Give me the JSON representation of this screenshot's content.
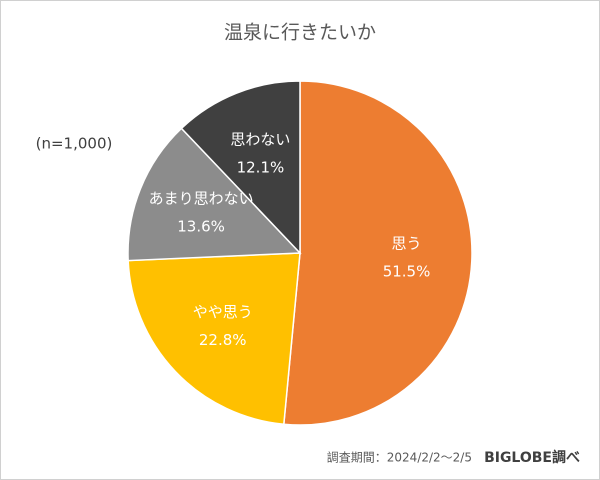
{
  "chart_data": {
    "type": "pie",
    "title": "温泉に行きたいか",
    "note": "(n=1,000)",
    "categories": [
      "思う",
      "やや思う",
      "あまり思わない",
      "思わない"
    ],
    "values": [
      51.5,
      22.8,
      13.6,
      12.1
    ],
    "value_labels": [
      "51.5%",
      "22.8%",
      "13.6%",
      "12.1%"
    ],
    "colors": [
      "#ED7D31",
      "#FFC000",
      "#8C8C8C",
      "#404040"
    ],
    "source": "調査期間：2024/2/2～2/5",
    "credit": "BIGLOBE調べ"
  }
}
